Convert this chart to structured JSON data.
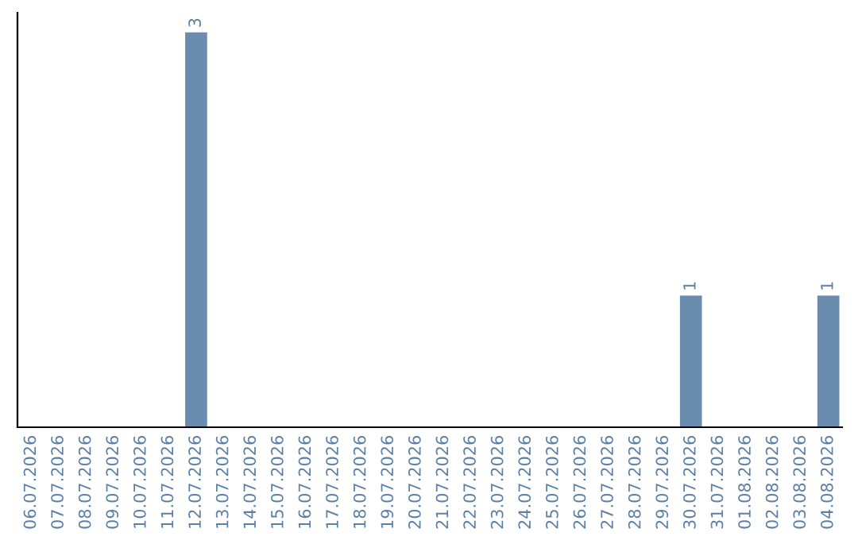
{
  "chart_data": {
    "type": "bar",
    "categories": [
      "06.07.2026",
      "07.07.2026",
      "08.07.2026",
      "09.07.2026",
      "10.07.2026",
      "11.07.2026",
      "12.07.2026",
      "13.07.2026",
      "14.07.2026",
      "15.07.2026",
      "16.07.2026",
      "17.07.2026",
      "18.07.2026",
      "19.07.2026",
      "20.07.2026",
      "21.07.2026",
      "22.07.2026",
      "23.07.2026",
      "24.07.2026",
      "25.07.2026",
      "26.07.2026",
      "27.07.2026",
      "28.07.2026",
      "29.07.2026",
      "30.07.2026",
      "31.07.2026",
      "01.08.2026",
      "02.08.2026",
      "03.08.2026",
      "04.08.2026"
    ],
    "values": [
      0,
      0,
      0,
      0,
      0,
      0,
      3,
      0,
      0,
      0,
      0,
      0,
      0,
      0,
      0,
      0,
      0,
      0,
      0,
      0,
      0,
      0,
      0,
      0,
      1,
      0,
      0,
      0,
      0,
      1
    ],
    "value_labels": [
      null,
      null,
      null,
      null,
      null,
      null,
      "3",
      null,
      null,
      null,
      null,
      null,
      null,
      null,
      null,
      null,
      null,
      null,
      null,
      null,
      null,
      null,
      null,
      null,
      "1",
      null,
      null,
      null,
      null,
      "1"
    ],
    "color": "#6a8caf",
    "ylim": [
      0,
      3.15
    ],
    "tick_labels": "x",
    "grid": false,
    "legend": false
  }
}
